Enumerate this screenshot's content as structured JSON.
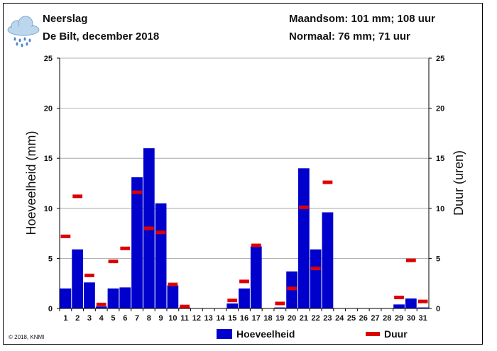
{
  "header": {
    "title": "Neerslag",
    "subtitle": "De Bilt, december 2018",
    "monthly_sum": "Maandsom: 101 mm; 108 uur",
    "normal": "Normaal: 76 mm; 71 uur",
    "icon": "rain-cloud-icon"
  },
  "copyright": "© 2018, KNMI",
  "colors": {
    "bar": "#0000cc",
    "duration": "#dd0000",
    "grid": "#999999"
  },
  "chart_data": {
    "type": "bar",
    "categories": [
      "1",
      "2",
      "3",
      "4",
      "5",
      "6",
      "7",
      "8",
      "9",
      "10",
      "11",
      "12",
      "13",
      "14",
      "15",
      "16",
      "17",
      "18",
      "19",
      "20",
      "21",
      "22",
      "23",
      "24",
      "25",
      "26",
      "27",
      "28",
      "29",
      "30",
      "31"
    ],
    "series": [
      {
        "name": "Hoeveelheid",
        "type": "bar",
        "axis": "left",
        "values": [
          2.0,
          5.9,
          2.6,
          0.2,
          2.0,
          2.1,
          13.1,
          16.0,
          10.5,
          2.3,
          0.1,
          0,
          0,
          0,
          0.5,
          2.0,
          6.2,
          0,
          0.1,
          3.7,
          14.0,
          5.9,
          9.6,
          0,
          0,
          0,
          0,
          0,
          0.4,
          1.0,
          0.1
        ]
      },
      {
        "name": "Duur",
        "type": "marker",
        "axis": "right",
        "values": [
          7.2,
          11.2,
          3.3,
          0.4,
          4.7,
          6.0,
          11.6,
          8.0,
          7.6,
          2.4,
          0.2,
          null,
          null,
          null,
          0.8,
          2.7,
          6.3,
          null,
          0.5,
          2.0,
          10.1,
          4.0,
          12.6,
          null,
          null,
          null,
          null,
          null,
          1.1,
          4.8,
          0.7
        ]
      }
    ],
    "ylabel": "Hoeveelheid (mm)",
    "y2label": "Duur (uren)",
    "ylim": [
      0,
      25
    ],
    "y2lim": [
      0,
      25
    ],
    "yticks": [
      "0",
      "5",
      "10",
      "15",
      "20",
      "25"
    ],
    "y2ticks": [
      "0",
      "5",
      "10",
      "15",
      "20",
      "25"
    ],
    "grid": true,
    "legend": "bottom-center"
  }
}
